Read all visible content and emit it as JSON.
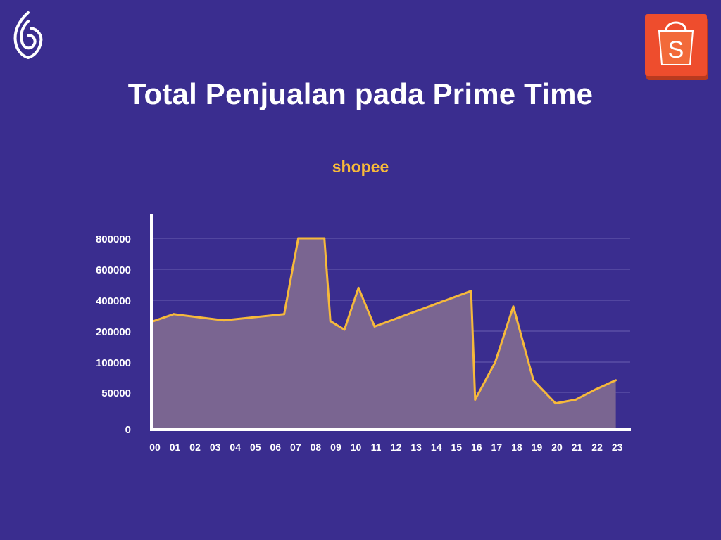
{
  "header": {
    "title": "Total Penjualan pada Prime Time",
    "brand_icon": "leaf-logo-icon",
    "shop_icon": "shopee-bag-icon",
    "shop_icon_letter": "S"
  },
  "colors": {
    "background": "#3a2d8f",
    "line": "#f6b93b",
    "area_fill": "#7a6591",
    "axis": "#ffffff",
    "grid": "#6b5fb0",
    "shopee_orange": "#ee4d2d"
  },
  "chart_data": {
    "type": "area",
    "title": "shopee",
    "xlabel": "",
    "ylabel": "",
    "y_ticks": [
      "0",
      "50000",
      "100000",
      "200000",
      "400000",
      "600000",
      "800000"
    ],
    "x_ticks": [
      "00",
      "01",
      "02",
      "03",
      "04",
      "05",
      "06",
      "07",
      "08",
      "09",
      "10",
      "11",
      "12",
      "13",
      "14",
      "15",
      "16",
      "17",
      "18",
      "19",
      "20",
      "21",
      "22",
      "23"
    ],
    "grid": true,
    "note_scale": "non-linear category y-axis",
    "series": [
      {
        "x": [
          0.0,
          1.0,
          3.5,
          6.5,
          7.2,
          8.5,
          8.8,
          9.5,
          10.2,
          11.0,
          15.8,
          16.0,
          17.0,
          17.9,
          18.9,
          20.0,
          21.0,
          22.0,
          23.0
        ],
        "y": [
          265000,
          310000,
          270000,
          310000,
          800000,
          800000,
          265000,
          210000,
          480000,
          230000,
          460000,
          40000,
          100000,
          360000,
          70000,
          35000,
          40000,
          55000,
          70000
        ]
      }
    ]
  }
}
